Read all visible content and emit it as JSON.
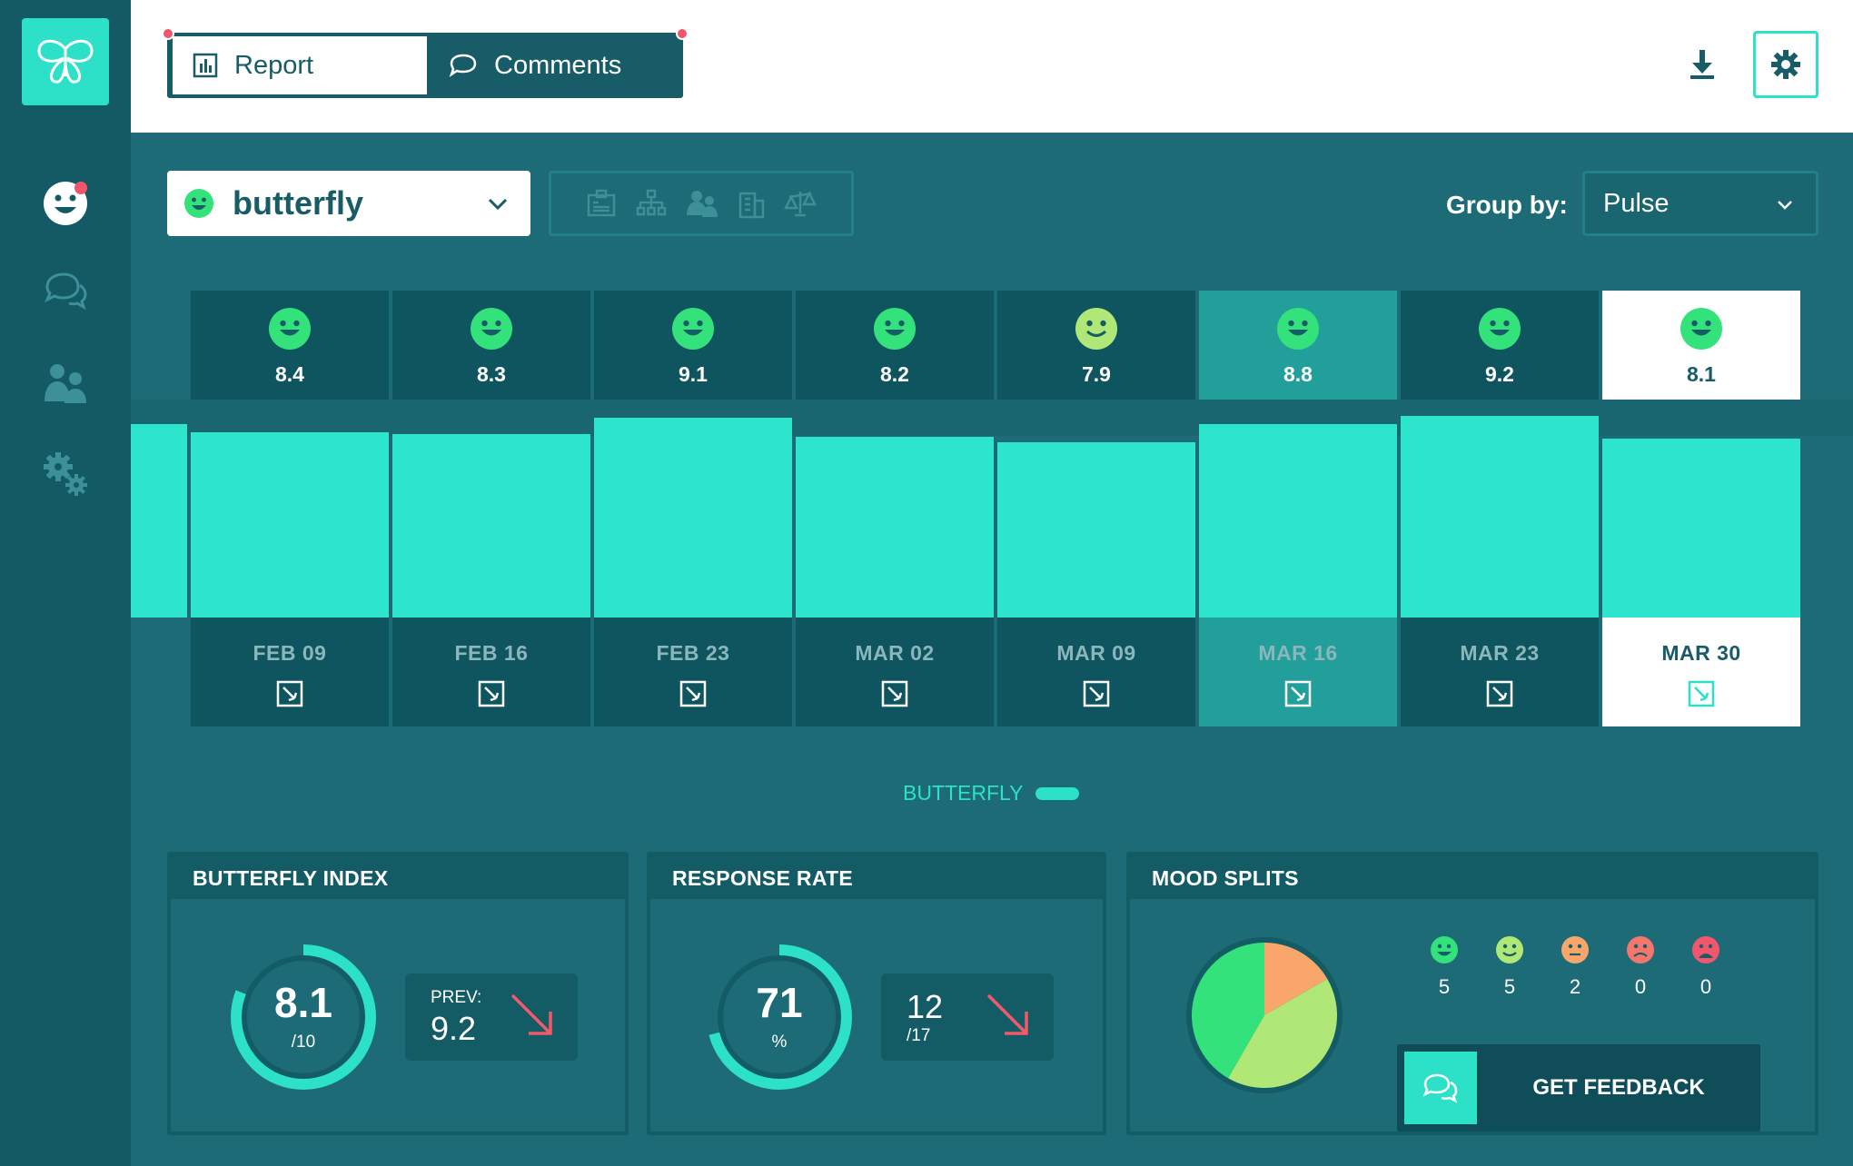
{
  "header": {
    "tabs": [
      {
        "label": "Report",
        "icon": "bar-chart-icon",
        "active": true
      },
      {
        "label": "Comments",
        "icon": "comment-icon",
        "active": false
      }
    ]
  },
  "sidebar": {
    "items": [
      {
        "icon": "smiley-icon",
        "active": true
      },
      {
        "icon": "chat-icon"
      },
      {
        "icon": "users-icon"
      },
      {
        "icon": "gears-icon"
      }
    ]
  },
  "filters": {
    "survey": "butterfly",
    "group_by_label": "Group by:",
    "group_by_value": "Pulse"
  },
  "chart_data": {
    "type": "bar",
    "categories": [
      "FEB 09",
      "FEB 16",
      "FEB 23",
      "MAR 02",
      "MAR 09",
      "MAR 16",
      "MAR 23",
      "MAR 30"
    ],
    "series": [
      {
        "name": "BUTTERFLY",
        "values": [
          8.4,
          8.3,
          9.1,
          8.2,
          7.9,
          8.8,
          9.2,
          8.1
        ]
      }
    ],
    "score_labels": [
      "8.4",
      "8.3",
      "9.1",
      "8.2",
      "7.9",
      "8.8",
      "9.2",
      "8.1"
    ],
    "ylim": [
      0,
      10
    ],
    "highlighted": "MAR 16",
    "selected": "MAR 30",
    "bar_color": "#2de4cc"
  },
  "legend": {
    "label": "BUTTERFLY"
  },
  "cards": {
    "index": {
      "title": "BUTTERFLY INDEX",
      "value": "8.1",
      "sub": "/10",
      "fraction": 0.81,
      "prev_label": "PREV:",
      "prev_value": "9.2"
    },
    "response": {
      "title": "RESPONSE RATE",
      "value": "71",
      "sub": "%",
      "fraction": 0.71,
      "count": "12",
      "total": "/17"
    },
    "moods": {
      "title": "MOOD SPLITS",
      "items": [
        {
          "icon": "very-happy-face-icon",
          "count": "5",
          "color": "#34e27b"
        },
        {
          "icon": "happy-face-icon",
          "count": "5",
          "color": "#b0e878"
        },
        {
          "icon": "neutral-face-icon",
          "count": "2",
          "color": "#f9a66a"
        },
        {
          "icon": "sad-face-icon",
          "count": "0",
          "color": "#f4766c"
        },
        {
          "icon": "very-sad-face-icon",
          "count": "0",
          "color": "#f2566d"
        }
      ],
      "pie_values": [
        5,
        5,
        2
      ],
      "pie_colors": [
        "#34e27b",
        "#b0e878",
        "#f9a66a"
      ],
      "button_label": "GET FEEDBACK"
    }
  }
}
